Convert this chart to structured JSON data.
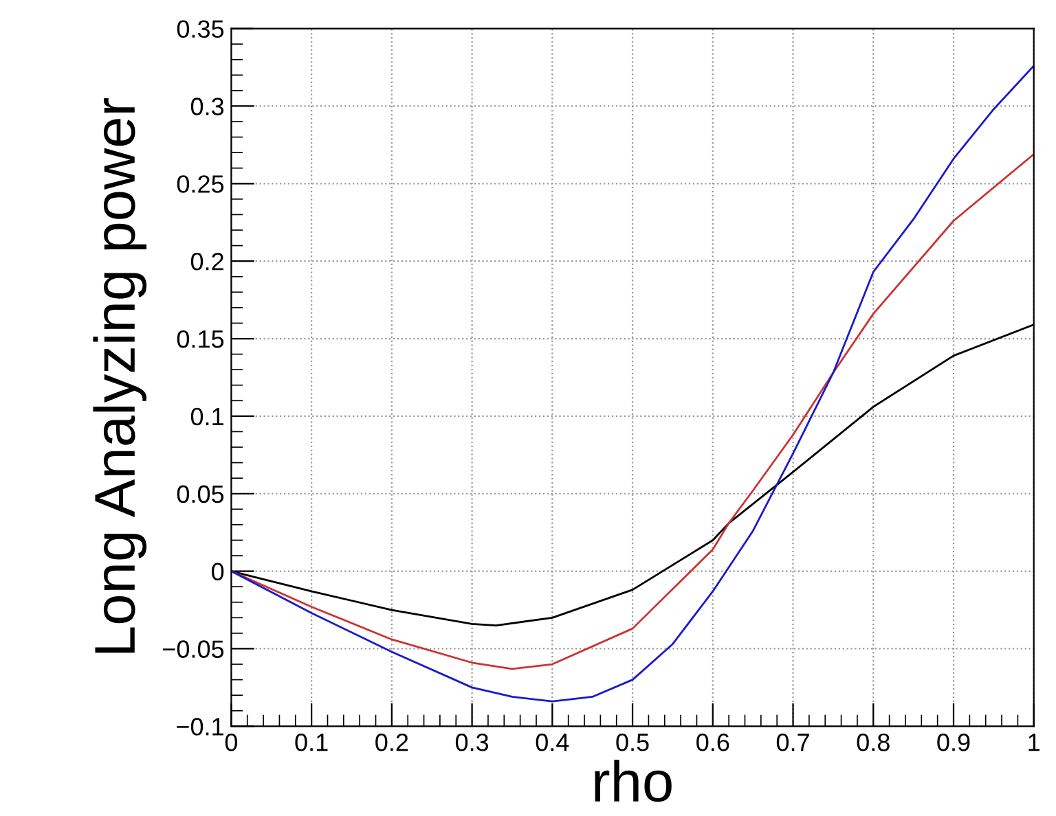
{
  "chart_data": {
    "type": "line",
    "xlabel": "rho",
    "ylabel": "Long Analyzing power",
    "xlim": [
      0,
      1
    ],
    "ylim": [
      -0.1,
      0.35
    ],
    "xticks": [
      0,
      0.1,
      0.2,
      0.3,
      0.4,
      0.5,
      0.6,
      0.7,
      0.8,
      0.9,
      1
    ],
    "yticks": [
      {
        "value": -0.1,
        "label": "−0.1"
      },
      {
        "value": -0.05,
        "label": "−0.05"
      },
      0,
      0.05,
      0.1,
      0.15,
      0.2,
      0.25,
      0.3,
      0.35
    ],
    "grid": true,
    "legend": false,
    "marker": "none",
    "line_style": "solid",
    "series": [
      {
        "color": "#000000",
        "x": [
          0,
          0.1,
          0.2,
          0.3,
          0.33,
          0.4,
          0.5,
          0.6,
          0.62,
          0.7,
          0.8,
          0.9,
          1.0
        ],
        "values": [
          0,
          -0.013,
          -0.025,
          -0.034,
          -0.035,
          -0.03,
          -0.012,
          0.02,
          0.031,
          0.064,
          0.106,
          0.139,
          0.159
        ]
      },
      {
        "color": "#cc3333",
        "x": [
          0,
          0.1,
          0.2,
          0.3,
          0.35,
          0.4,
          0.5,
          0.6,
          0.62,
          0.65,
          0.7,
          0.75,
          0.8,
          0.9,
          1.0
        ],
        "values": [
          0,
          -0.023,
          -0.044,
          -0.059,
          -0.063,
          -0.06,
          -0.037,
          0.014,
          0.031,
          0.052,
          0.088,
          0.128,
          0.166,
          0.226,
          0.269
        ]
      },
      {
        "color": "#1a1acc",
        "x": [
          0,
          0.1,
          0.2,
          0.3,
          0.35,
          0.4,
          0.45,
          0.5,
          0.55,
          0.6,
          0.65,
          0.7,
          0.75,
          0.8,
          0.85,
          0.9,
          0.95,
          1.0
        ],
        "values": [
          0,
          -0.027,
          -0.052,
          -0.075,
          -0.081,
          -0.084,
          -0.081,
          -0.07,
          -0.047,
          -0.013,
          0.026,
          0.076,
          0.128,
          0.193,
          0.227,
          0.266,
          0.298,
          0.326
        ]
      }
    ]
  }
}
